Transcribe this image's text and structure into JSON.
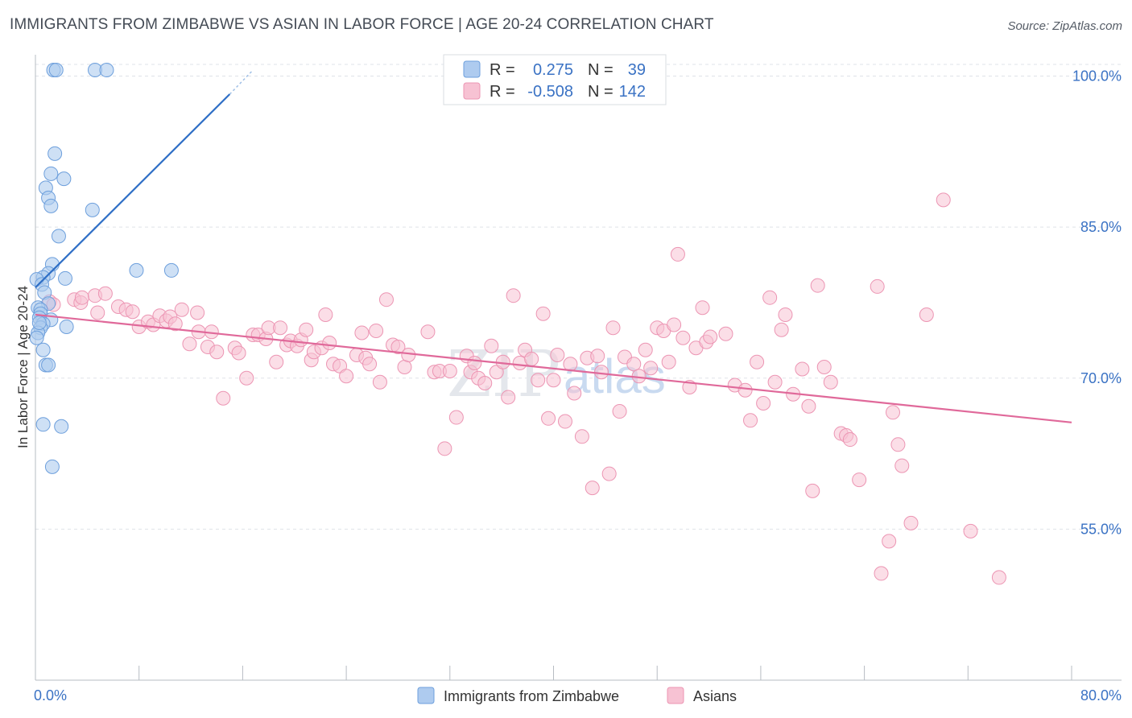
{
  "header": {
    "title": "IMMIGRANTS FROM ZIMBABWE VS ASIAN IN LABOR FORCE | AGE 20-24 CORRELATION CHART",
    "source": "Source: ZipAtlas.com"
  },
  "watermark": {
    "zip": "ZIP",
    "atlas": "atlas"
  },
  "legend_box": {
    "rows": [
      {
        "r_label": "R =",
        "r_value": "0.275",
        "n_label": "N =",
        "n_value": "39"
      },
      {
        "r_label": "R =",
        "r_value": "-0.508",
        "n_label": "N =",
        "n_value": "142"
      }
    ]
  },
  "colors": {
    "blue_fill": "#aecbef",
    "blue_stroke": "#6d9fdc",
    "blue_line": "#2f6fc6",
    "pink_fill": "#f7c2d3",
    "pink_stroke": "#ec95b3",
    "pink_line": "#e0699a",
    "tick_color": "#3a72c4",
    "grid": "#dfe3e8"
  },
  "chart_data": {
    "type": "scatter",
    "title": "IMMIGRANTS FROM ZIMBABWE VS ASIAN IN LABOR FORCE | AGE 20-24 CORRELATION CHART",
    "xlabel": "",
    "ylabel": "In Labor Force | Age 20-24",
    "xlim": [
      0,
      80
    ],
    "ylim": [
      40,
      101.8
    ],
    "x_tick_labels": [
      "0.0%",
      "80.0%"
    ],
    "y_ticks": [
      55,
      70,
      85,
      100
    ],
    "y_tick_labels": [
      "55.0%",
      "70.0%",
      "85.0%",
      "100.0%"
    ],
    "grid": true,
    "legend_position": "top-center",
    "series": [
      {
        "name": "Immigrants from Zimbabwe",
        "color": "#aecbef",
        "points": [
          [
            1.4,
            100.6
          ],
          [
            1.6,
            100.6
          ],
          [
            4.6,
            100.6
          ],
          [
            5.5,
            100.6
          ],
          [
            1.5,
            92.3
          ],
          [
            1.2,
            90.3
          ],
          [
            2.2,
            89.8
          ],
          [
            0.8,
            88.9
          ],
          [
            1.0,
            87.9
          ],
          [
            1.2,
            87.1
          ],
          [
            4.4,
            86.7
          ],
          [
            1.8,
            84.1
          ],
          [
            1.3,
            81.3
          ],
          [
            1.0,
            80.4
          ],
          [
            0.6,
            80.0
          ],
          [
            0.1,
            79.8
          ],
          [
            2.3,
            79.9
          ],
          [
            7.8,
            80.7
          ],
          [
            10.5,
            80.7
          ],
          [
            0.5,
            79.3
          ],
          [
            0.7,
            78.5
          ],
          [
            1.0,
            77.4
          ],
          [
            0.2,
            77.0
          ],
          [
            0.4,
            76.8
          ],
          [
            0.4,
            76.4
          ],
          [
            1.2,
            75.8
          ],
          [
            0.3,
            76.0
          ],
          [
            0.6,
            75.4
          ],
          [
            0.4,
            75.0
          ],
          [
            2.4,
            75.1
          ],
          [
            0.2,
            74.5
          ],
          [
            0.6,
            72.8
          ],
          [
            0.8,
            71.3
          ],
          [
            1.0,
            71.3
          ],
          [
            0.6,
            65.4
          ],
          [
            2.0,
            65.2
          ],
          [
            1.3,
            61.2
          ],
          [
            0.1,
            74.0
          ],
          [
            0.3,
            75.5
          ]
        ]
      },
      {
        "name": "Asians",
        "color": "#f7c2d3",
        "points": [
          [
            1.1,
            77.6
          ],
          [
            1.4,
            77.3
          ],
          [
            3.0,
            77.8
          ],
          [
            3.5,
            77.5
          ],
          [
            3.6,
            78.0
          ],
          [
            4.6,
            78.2
          ],
          [
            4.8,
            76.5
          ],
          [
            5.4,
            78.4
          ],
          [
            6.4,
            77.1
          ],
          [
            7.0,
            76.8
          ],
          [
            7.5,
            76.6
          ],
          [
            8.0,
            75.1
          ],
          [
            8.7,
            75.6
          ],
          [
            9.1,
            75.3
          ],
          [
            9.6,
            76.2
          ],
          [
            10.1,
            75.7
          ],
          [
            10.4,
            76.1
          ],
          [
            10.8,
            75.4
          ],
          [
            11.3,
            76.8
          ],
          [
            11.9,
            73.4
          ],
          [
            12.5,
            76.5
          ],
          [
            12.6,
            74.6
          ],
          [
            13.3,
            73.1
          ],
          [
            13.6,
            74.6
          ],
          [
            14.0,
            72.6
          ],
          [
            14.5,
            68.0
          ],
          [
            15.4,
            73.0
          ],
          [
            15.7,
            72.5
          ],
          [
            16.3,
            70.0
          ],
          [
            16.8,
            74.3
          ],
          [
            17.2,
            74.3
          ],
          [
            17.8,
            73.9
          ],
          [
            18.0,
            75.0
          ],
          [
            18.6,
            71.6
          ],
          [
            18.9,
            75.0
          ],
          [
            19.4,
            73.3
          ],
          [
            19.7,
            73.7
          ],
          [
            20.2,
            73.2
          ],
          [
            20.5,
            73.8
          ],
          [
            20.9,
            74.8
          ],
          [
            21.3,
            71.8
          ],
          [
            21.5,
            72.6
          ],
          [
            22.1,
            73.0
          ],
          [
            22.4,
            76.3
          ],
          [
            22.7,
            73.5
          ],
          [
            23.0,
            71.4
          ],
          [
            23.5,
            71.2
          ],
          [
            24.0,
            70.2
          ],
          [
            24.8,
            72.3
          ],
          [
            25.2,
            74.5
          ],
          [
            25.5,
            72.0
          ],
          [
            25.8,
            71.4
          ],
          [
            26.3,
            74.7
          ],
          [
            26.6,
            69.6
          ],
          [
            27.1,
            77.8
          ],
          [
            27.6,
            73.3
          ],
          [
            28.0,
            73.1
          ],
          [
            28.5,
            71.1
          ],
          [
            28.8,
            72.3
          ],
          [
            30.3,
            74.6
          ],
          [
            30.8,
            70.6
          ],
          [
            31.2,
            70.7
          ],
          [
            31.6,
            63.0
          ],
          [
            32.0,
            70.7
          ],
          [
            32.5,
            66.1
          ],
          [
            33.3,
            72.2
          ],
          [
            33.6,
            70.6
          ],
          [
            33.9,
            71.5
          ],
          [
            34.2,
            70.0
          ],
          [
            34.7,
            69.5
          ],
          [
            35.2,
            73.2
          ],
          [
            35.6,
            70.6
          ],
          [
            36.1,
            71.6
          ],
          [
            36.5,
            68.1
          ],
          [
            36.9,
            78.2
          ],
          [
            37.4,
            71.5
          ],
          [
            37.8,
            72.8
          ],
          [
            38.3,
            71.9
          ],
          [
            38.8,
            69.8
          ],
          [
            39.2,
            76.4
          ],
          [
            39.6,
            66.0
          ],
          [
            40.0,
            69.8
          ],
          [
            40.3,
            72.3
          ],
          [
            40.9,
            65.7
          ],
          [
            41.3,
            71.4
          ],
          [
            41.6,
            68.5
          ],
          [
            42.2,
            64.2
          ],
          [
            42.6,
            72.0
          ],
          [
            43.0,
            59.1
          ],
          [
            43.4,
            72.2
          ],
          [
            43.7,
            70.6
          ],
          [
            44.3,
            60.5
          ],
          [
            44.6,
            75.0
          ],
          [
            45.1,
            66.7
          ],
          [
            45.5,
            72.1
          ],
          [
            46.2,
            71.4
          ],
          [
            46.6,
            70.2
          ],
          [
            47.1,
            72.8
          ],
          [
            47.5,
            71.0
          ],
          [
            48.0,
            75.0
          ],
          [
            48.5,
            74.7
          ],
          [
            48.9,
            71.6
          ],
          [
            49.3,
            75.3
          ],
          [
            49.6,
            82.3
          ],
          [
            50.0,
            74.0
          ],
          [
            50.5,
            69.1
          ],
          [
            51.0,
            73.0
          ],
          [
            51.5,
            77.0
          ],
          [
            51.8,
            73.6
          ],
          [
            52.1,
            74.1
          ],
          [
            53.3,
            74.4
          ],
          [
            54.0,
            69.3
          ],
          [
            54.8,
            68.8
          ],
          [
            55.2,
            65.8
          ],
          [
            55.7,
            71.6
          ],
          [
            56.2,
            67.5
          ],
          [
            56.7,
            78.0
          ],
          [
            57.1,
            69.6
          ],
          [
            57.6,
            74.8
          ],
          [
            57.9,
            76.3
          ],
          [
            58.5,
            68.4
          ],
          [
            59.2,
            70.9
          ],
          [
            59.7,
            67.2
          ],
          [
            60.0,
            58.8
          ],
          [
            60.4,
            79.2
          ],
          [
            60.9,
            71.1
          ],
          [
            61.4,
            69.6
          ],
          [
            62.2,
            64.5
          ],
          [
            62.6,
            64.3
          ],
          [
            62.9,
            63.9
          ],
          [
            63.6,
            59.9
          ],
          [
            65.0,
            79.1
          ],
          [
            65.3,
            50.6
          ],
          [
            65.9,
            53.8
          ],
          [
            66.2,
            66.6
          ],
          [
            66.6,
            63.4
          ],
          [
            66.9,
            61.3
          ],
          [
            67.6,
            55.6
          ],
          [
            68.8,
            76.3
          ],
          [
            70.1,
            87.7
          ],
          [
            72.2,
            54.8
          ],
          [
            74.4,
            50.2
          ]
        ]
      }
    ],
    "trend_lines": [
      {
        "series": "Immigrants from Zimbabwe",
        "from": [
          0.0,
          79.0
        ],
        "to": [
          15.0,
          98.2
        ],
        "dashed_extension_to": [
          16.8,
          100.6
        ]
      },
      {
        "series": "Asians",
        "from": [
          0.0,
          76.3
        ],
        "to": [
          80.0,
          65.6
        ]
      }
    ]
  },
  "bottom_legend": [
    {
      "label": "Immigrants from Zimbabwe"
    },
    {
      "label": "Asians"
    }
  ]
}
